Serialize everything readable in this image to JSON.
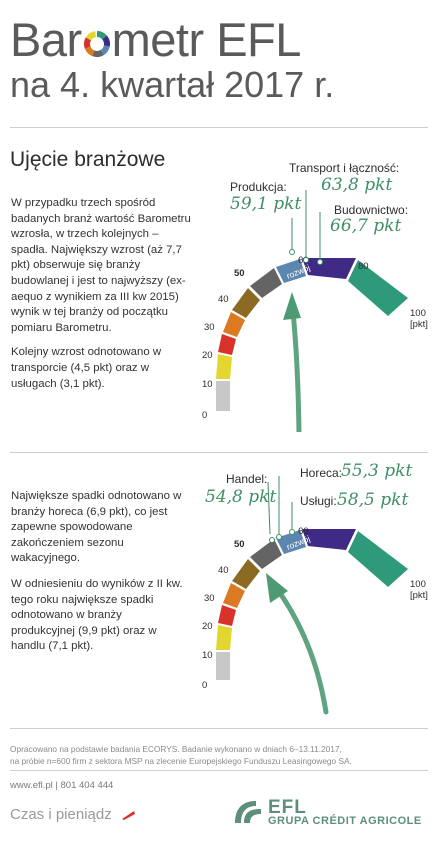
{
  "header": {
    "title_prefix": "Bar",
    "title_suffix": "metr EFL",
    "subtitle": "na 4. kwartał 2017 r."
  },
  "section_title": "Ujęcie branżowe",
  "top": {
    "paragraphs": [
      "W przypadku trzech spośród badanych branż wartość Barometru wzrosła, w trzech kolejnych – spadła. Największy wzrost (aż 7,7 pkt) obserwuje się branży budowlanej i jest to najwyższy (ex-aequo z wynikiem za III kw 2015) wynik w tej branży od początku pomiaru Barometru.",
      "Kolejny wzrost odnotowano w transporcie (4,5 pkt) oraz w usługach (3,1 pkt)."
    ],
    "annotations": [
      {
        "label": "Produkcja:",
        "value": "59,1 pkt"
      },
      {
        "label": "Transport i łączność:",
        "value": "63,8 pkt"
      },
      {
        "label": "Budownictwo:",
        "value": "66,7 pkt"
      }
    ],
    "ticks": [
      "0",
      "10",
      "20",
      "30",
      "40",
      "50",
      "60",
      "80",
      "100",
      "[pkt]"
    ],
    "zone_label": "rozwój"
  },
  "bottom": {
    "paragraphs": [
      "Największe spadki odnotowano w branży horeca (6,9 pkt), co jest zapewne spowodowane zakończeniem sezonu wakacyjnego.",
      "W odniesieniu do wyników z II kw. tego roku największe spadki odnotowano w branży produkcyjnej (9,9 pkt) oraz w handlu (7,1 pkt)."
    ],
    "annotations": [
      {
        "label": "Handel:",
        "value": "54,8 pkt"
      },
      {
        "label": "Horeca:",
        "value": "55,3 pkt"
      },
      {
        "label": "Usługi:",
        "value": "58,5 pkt"
      }
    ],
    "ticks": [
      "0",
      "10",
      "20",
      "30",
      "40",
      "50",
      "60",
      "100",
      "[pkt]"
    ],
    "zone_label": "rozwój"
  },
  "gauge_colors": [
    "#c8c8c8",
    "#e4d630",
    "#d8322a",
    "#db7a22",
    "#8b6a23",
    "#646464",
    "#5b86b0",
    "#3f2a86",
    "#2e9a7a"
  ],
  "footer": {
    "note_line1": "Opracowano na podstawie badania ECORYS. Badanie wykonano w dniach 6–13.11.2017,",
    "note_line2": "na próbie n=600 firm z sektora MSP na zlecenie Europejskiego Funduszu Leasingowego SA.",
    "contact": "www.efl.pl | 801 404 444",
    "tagline": "Czas i pieniądz",
    "brand": "EFL",
    "group": "GRUPA CRÉDIT AGRICOLE"
  }
}
